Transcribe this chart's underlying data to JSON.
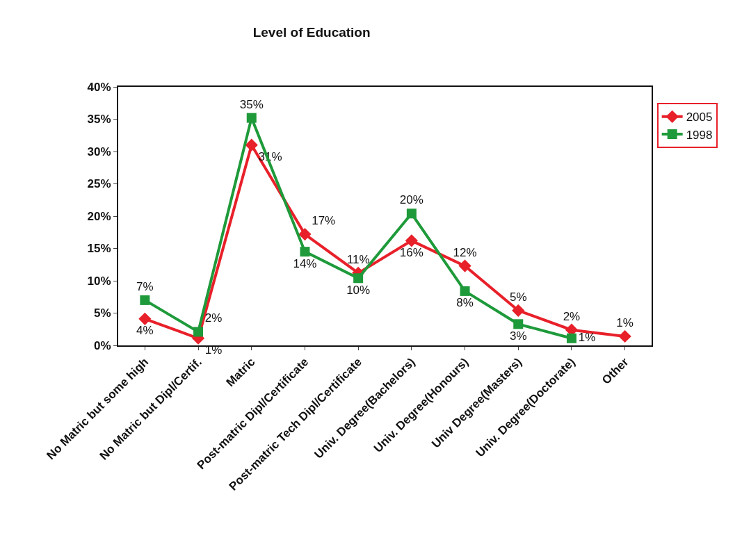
{
  "chart_data": {
    "type": "line",
    "title": "Level of Education",
    "categories": [
      "No Matric but some high",
      "No Matric but Dipl/Certif.",
      "Matric",
      "Post-matric Dipl/Certificate",
      "Post-matric Tech Dipl/Certificate",
      "Univ. Degree(Bachelors)",
      "Univ. Degree(Honours)",
      "Univ Degree(Masters)",
      "Univ. Degree(Doctorate)",
      "Other"
    ],
    "series": [
      {
        "name": "2005",
        "color": "#e8202a",
        "marker": "diamond",
        "values": [
          4.1,
          1.1,
          31.0,
          17.2,
          11.2,
          16.2,
          12.3,
          5.4,
          2.4,
          1.4
        ],
        "value_labels": [
          "4%",
          "1%",
          "31%",
          "17%",
          "11%",
          "16%",
          "12%",
          "5%",
          "2%",
          "1%"
        ]
      },
      {
        "name": "1998",
        "color": "#1e9a3a",
        "marker": "square",
        "values": [
          7.0,
          2.1,
          35.2,
          14.5,
          10.4,
          20.4,
          8.4,
          3.3,
          1.1,
          null
        ],
        "value_labels": [
          "7%",
          "2%",
          "35%",
          "14%",
          "10%",
          "20%",
          "8%",
          "3%",
          "1%",
          null
        ]
      }
    ],
    "ylim": [
      0,
      40
    ],
    "yticks": [
      {
        "value": 0,
        "label": "0%"
      },
      {
        "value": 5,
        "label": "5%"
      },
      {
        "value": 10,
        "label": "10%"
      },
      {
        "value": 15,
        "label": "15%"
      },
      {
        "value": 20,
        "label": "20%"
      },
      {
        "value": 25,
        "label": "25%"
      },
      {
        "value": 30,
        "label": "30%"
      },
      {
        "value": 35,
        "label": "35%"
      },
      {
        "value": 40,
        "label": "40%"
      }
    ],
    "grid": false,
    "legend": "right",
    "line_style": "solid"
  }
}
